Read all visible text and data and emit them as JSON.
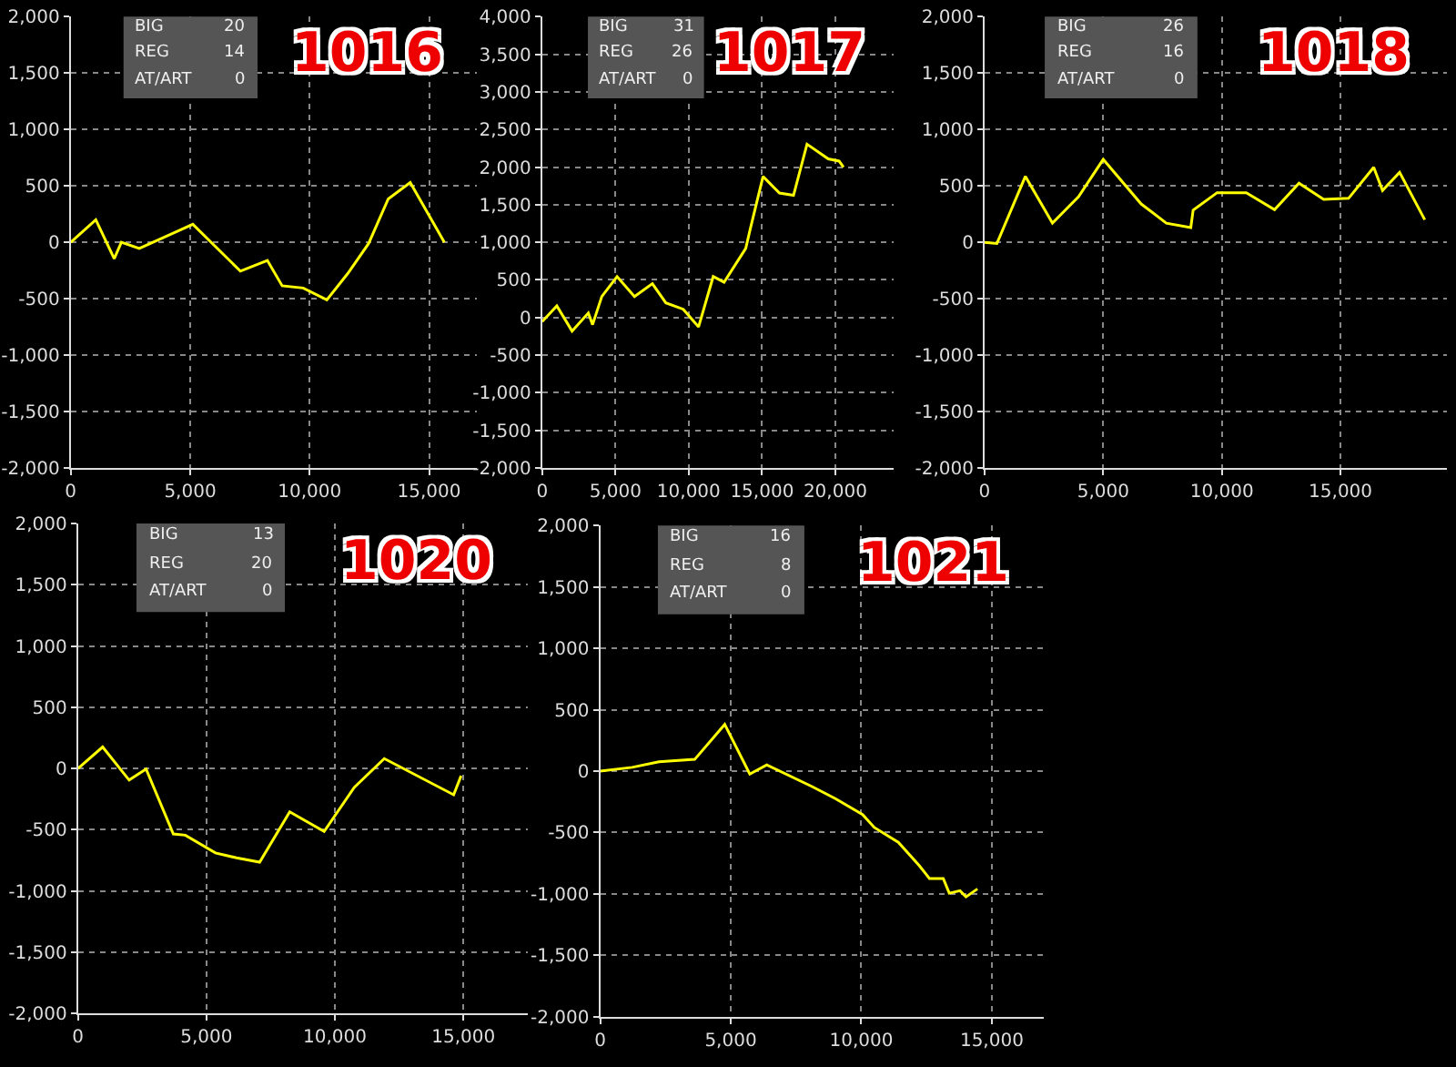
{
  "chart_data": [
    {
      "type": "line",
      "title": "1016",
      "annotations": [
        "BIG",
        "20",
        "REG",
        "14",
        "AT/ART",
        "0"
      ],
      "grid": true,
      "x": [
        0,
        1050,
        1820,
        2120,
        2870,
        5110,
        7100,
        8230,
        8850,
        9730,
        10720,
        11600,
        12470,
        13290,
        14210,
        15640
      ],
      "series": [
        {
          "color": "#ffff00",
          "values": [
            0,
            200,
            -145,
            0,
            -55,
            160,
            -255,
            -160,
            -385,
            -405,
            -510,
            -275,
            -10,
            385,
            530,
            0
          ]
        }
      ],
      "xlim": [
        0,
        17000
      ],
      "xticks": [
        0,
        {
          "value": 5000,
          "label": "5,000"
        },
        {
          "value": 10000,
          "label": "10,000"
        },
        {
          "value": 15000,
          "label": "15,000"
        }
      ],
      "ylim": [
        -2000,
        2000
      ],
      "yticks": [
        {
          "value": -2000,
          "label": "-2,000"
        },
        {
          "value": -1500,
          "label": "-1,500"
        },
        {
          "value": -1000,
          "label": "-1,000"
        },
        -500,
        0,
        500,
        {
          "value": 1000,
          "label": "1,000"
        },
        {
          "value": 1500,
          "label": "1,500"
        },
        {
          "value": 2000,
          "label": "2,000"
        }
      ]
    },
    {
      "type": "line",
      "title": "1017",
      "annotations": [
        "BIG",
        "31",
        "REG",
        "26",
        "AT/ART",
        "0"
      ],
      "grid": true,
      "x": [
        0,
        1000,
        2040,
        3150,
        3440,
        4070,
        5110,
        6300,
        7520,
        8440,
        9630,
        10670,
        11670,
        12410,
        13890,
        14190,
        15070,
        16190,
        17150,
        18070,
        19520,
        20260,
        20560
      ],
      "series": [
        {
          "color": "#ffff00",
          "values": [
            -55,
            155,
            -180,
            60,
            -95,
            280,
            545,
            280,
            450,
            195,
            110,
            -125,
            545,
            470,
            920,
            1170,
            1875,
            1655,
            1625,
            2305,
            2110,
            2080,
            2000
          ]
        }
      ],
      "xlim": [
        0,
        24000
      ],
      "xticks": [
        0,
        {
          "value": 5000,
          "label": "5,000"
        },
        {
          "value": 10000,
          "label": "10,000"
        },
        {
          "value": 15000,
          "label": "15,000"
        },
        {
          "value": 20000,
          "label": "20,000"
        }
      ],
      "ylim": [
        -2000,
        4000
      ],
      "yticks": [
        {
          "value": -2000,
          "label": "-2,000"
        },
        {
          "value": -1500,
          "label": "-1,500"
        },
        {
          "value": -1000,
          "label": "-1,000"
        },
        -500,
        0,
        500,
        {
          "value": 1000,
          "label": "1,000"
        },
        {
          "value": 1500,
          "label": "1,500"
        },
        {
          "value": 2000,
          "label": "2,000"
        },
        {
          "value": 2500,
          "label": "2,500"
        },
        {
          "value": 3000,
          "label": "3,000"
        },
        {
          "value": 3500,
          "label": "3,500"
        },
        {
          "value": 4000,
          "label": "4,000"
        }
      ]
    },
    {
      "type": "line",
      "title": "1018",
      "annotations": [
        "BIG",
        "26",
        "REG",
        "16",
        "AT/ART",
        "0"
      ],
      "grid": true,
      "x": [
        0,
        520,
        1720,
        2860,
        3960,
        5000,
        6600,
        7660,
        8690,
        8790,
        9800,
        11030,
        12220,
        13250,
        14290,
        15340,
        16400,
        16770,
        17490,
        18550
      ],
      "series": [
        {
          "color": "#ffff00",
          "values": [
            0,
            -10,
            585,
            170,
            405,
            735,
            340,
            170,
            130,
            285,
            440,
            440,
            290,
            525,
            380,
            390,
            665,
            460,
            620,
            200
          ]
        }
      ],
      "xlim": [
        0,
        19500
      ],
      "xticks": [
        0,
        {
          "value": 5000,
          "label": "5,000"
        },
        {
          "value": 10000,
          "label": "10,000"
        },
        {
          "value": 15000,
          "label": "15,000"
        }
      ],
      "ylim": [
        -2000,
        2000
      ],
      "yticks": [
        {
          "value": -2000,
          "label": "-2,000"
        },
        {
          "value": -1500,
          "label": "-1,500"
        },
        {
          "value": -1000,
          "label": "-1,000"
        },
        -500,
        0,
        500,
        {
          "value": 1000,
          "label": "1,000"
        },
        {
          "value": 1500,
          "label": "1,500"
        },
        {
          "value": 2000,
          "label": "2,000"
        }
      ]
    },
    {
      "type": "line",
      "title": "1020",
      "annotations": [
        "BIG",
        "13",
        "REG",
        "20",
        "AT/ART",
        "0"
      ],
      "grid": true,
      "x": [
        0,
        960,
        1990,
        2650,
        3710,
        4180,
        5350,
        6170,
        7070,
        8240,
        9580,
        10750,
        11920,
        14620,
        14910
      ],
      "series": [
        {
          "color": "#ffff00",
          "values": [
            0,
            175,
            -95,
            -5,
            -535,
            -545,
            -690,
            -730,
            -765,
            -355,
            -515,
            -155,
            80,
            -215,
            -60
          ]
        }
      ],
      "xlim": [
        0,
        17500
      ],
      "xticks": [
        0,
        {
          "value": 5000,
          "label": "5,000"
        },
        {
          "value": 10000,
          "label": "10,000"
        },
        {
          "value": 15000,
          "label": "15,000"
        }
      ],
      "ylim": [
        -2000,
        2000
      ],
      "yticks": [
        {
          "value": -2000,
          "label": "-2,000"
        },
        {
          "value": -1500,
          "label": "-1,500"
        },
        {
          "value": -1000,
          "label": "-1,000"
        },
        -500,
        0,
        500,
        {
          "value": 1000,
          "label": "1,000"
        },
        {
          "value": 1500,
          "label": "1,500"
        },
        {
          "value": 2000,
          "label": "2,000"
        }
      ]
    },
    {
      "type": "line",
      "title": "1021",
      "annotations": [
        "BIG",
        "16",
        "REG",
        "8",
        "AT/ART",
        "0"
      ],
      "grid": true,
      "x": [
        0,
        1220,
        2250,
        3620,
        4770,
        5730,
        6380,
        8100,
        9010,
        10050,
        10500,
        11420,
        12220,
        12610,
        13140,
        13370,
        13780,
        14010,
        14450
      ],
      "series": [
        {
          "color": "#ffff00",
          "values": [
            0,
            30,
            75,
            95,
            380,
            -25,
            50,
            -125,
            -225,
            -355,
            -460,
            -580,
            -770,
            -875,
            -875,
            -995,
            -975,
            -1025,
            -960
          ]
        }
      ],
      "xlim": [
        0,
        17000
      ],
      "xticks": [
        0,
        {
          "value": 5000,
          "label": "5,000"
        },
        {
          "value": 10000,
          "label": "10,000"
        },
        {
          "value": 15000,
          "label": "15,000"
        }
      ],
      "ylim": [
        -2000,
        2000
      ],
      "yticks": [
        {
          "value": -2000,
          "label": "-2,000"
        },
        {
          "value": -1500,
          "label": "-1,500"
        },
        {
          "value": -1000,
          "label": "-1,000"
        },
        -500,
        0,
        500,
        {
          "value": 1000,
          "label": "1,000"
        },
        {
          "value": 1500,
          "label": "1,500"
        },
        {
          "value": 2000,
          "label": "2,000"
        }
      ]
    }
  ]
}
